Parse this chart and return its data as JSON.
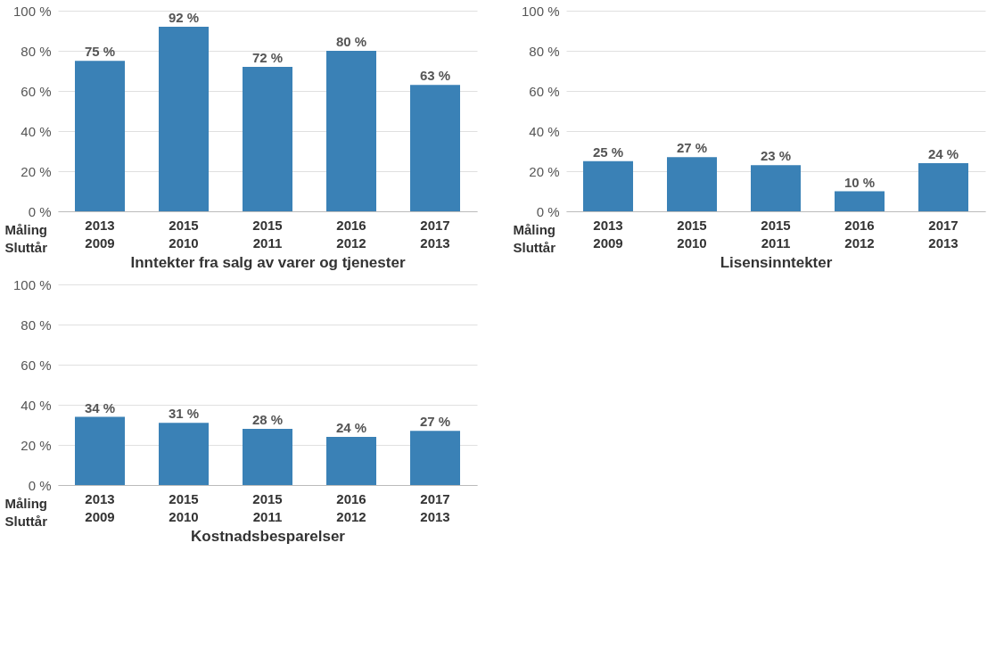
{
  "chart_data": [
    {
      "type": "bar",
      "xlabel": "Inntekter fra salg av varer og tjenester",
      "categories": [
        "2013\n2009",
        "2015\n2010",
        "2015\n2011",
        "2016\n2012",
        "2017\n2013"
      ],
      "values": [
        75,
        92,
        72,
        80,
        63
      ],
      "value_labels": [
        "75 %",
        "92 %",
        "72 %",
        "80 %",
        "63 %"
      ],
      "color": "#3a81b6",
      "ylim": [
        0,
        100
      ],
      "yticks": [
        {
          "value": 0,
          "label": "0 %"
        },
        {
          "value": 20,
          "label": "20 %"
        },
        {
          "value": 40,
          "label": "40 %"
        },
        {
          "value": 60,
          "label": "60 %"
        },
        {
          "value": 80,
          "label": "80 %"
        },
        {
          "value": 100,
          "label": "100 %"
        }
      ],
      "grid": "y",
      "annotations": [
        "Måling",
        "Sluttår"
      ]
    },
    {
      "type": "bar",
      "xlabel": "Lisensinntekter",
      "categories": [
        "2013\n2009",
        "2015\n2010",
        "2015\n2011",
        "2016\n2012",
        "2017\n2013"
      ],
      "values": [
        25,
        27,
        23,
        10,
        24
      ],
      "value_labels": [
        "25 %",
        "27 %",
        "23 %",
        "10 %",
        "24 %"
      ],
      "color": "#3a81b6",
      "ylim": [
        0,
        100
      ],
      "yticks": [
        {
          "value": 0,
          "label": "0 %"
        },
        {
          "value": 20,
          "label": "20 %"
        },
        {
          "value": 40,
          "label": "40 %"
        },
        {
          "value": 60,
          "label": "60 %"
        },
        {
          "value": 80,
          "label": "80 %"
        },
        {
          "value": 100,
          "label": "100 %"
        }
      ],
      "grid": "y",
      "annotations": [
        "Måling",
        "Sluttår"
      ]
    },
    {
      "type": "bar",
      "xlabel": "Kostnadsbesparelser",
      "categories": [
        "2013\n2009",
        "2015\n2010",
        "2015\n2011",
        "2016\n2012",
        "2017\n2013"
      ],
      "values": [
        34,
        31,
        28,
        24,
        27
      ],
      "value_labels": [
        "34 %",
        "31 %",
        "28 %",
        "24 %",
        "27 %"
      ],
      "color": "#3a81b6",
      "ylim": [
        0,
        100
      ],
      "yticks": [
        {
          "value": 0,
          "label": "0 %"
        },
        {
          "value": 20,
          "label": "20 %"
        },
        {
          "value": 40,
          "label": "40 %"
        },
        {
          "value": 60,
          "label": "60 %"
        },
        {
          "value": 80,
          "label": "80 %"
        },
        {
          "value": 100,
          "label": "100 %"
        }
      ],
      "grid": "y",
      "annotations": [
        "Måling",
        "Sluttår"
      ]
    }
  ]
}
